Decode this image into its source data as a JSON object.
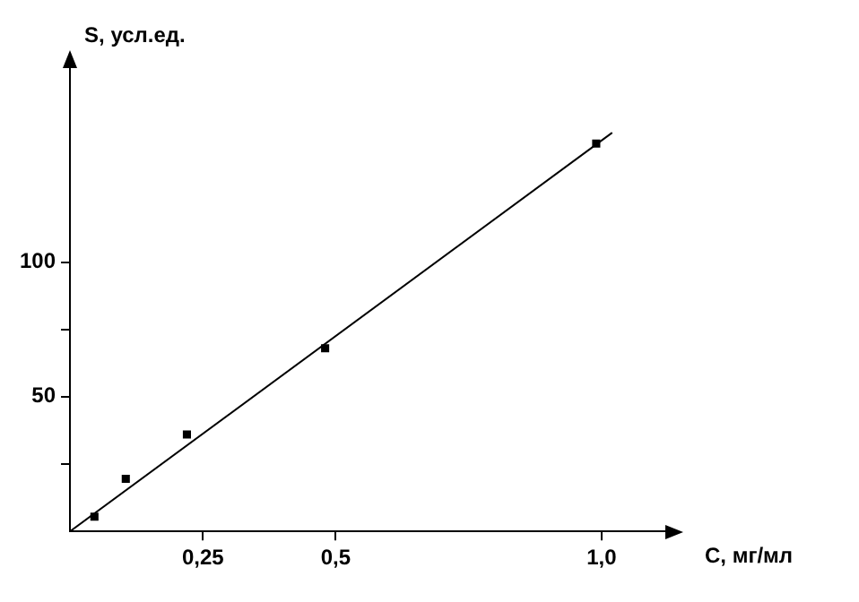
{
  "chart_data": {
    "type": "scatter",
    "xlabel": "C, мг/мл",
    "ylabel": "S, усл.ед.",
    "xlim": [
      0,
      1.12
    ],
    "ylim": [
      0,
      172
    ],
    "xticks": [
      {
        "value": 0.25,
        "label": "0,25"
      },
      {
        "value": 0.5,
        "label": "0,5"
      },
      {
        "value": 1,
        "label": "1,0"
      }
    ],
    "yticks": [
      {
        "value": 25,
        "label": null
      },
      50,
      {
        "value": 75,
        "label": null
      },
      100
    ],
    "series": [
      {
        "type": "scatter",
        "color": "#000000",
        "marker": "square",
        "x": [
          0.046,
          0.105,
          0.22,
          0.48,
          0.99
        ],
        "values": [
          5.5,
          19.5,
          36,
          68,
          144
        ]
      },
      {
        "type": "line",
        "color": "#000000",
        "marker": "none",
        "line_style": "solid",
        "x": [
          0,
          1.02
        ],
        "values": [
          0,
          148
        ]
      }
    ]
  }
}
